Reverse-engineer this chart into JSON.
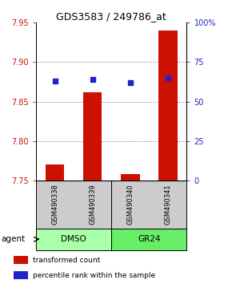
{
  "title": "GDS3583 / 249786_at",
  "samples": [
    "GSM490338",
    "GSM490339",
    "GSM490340",
    "GSM490341"
  ],
  "bar_values": [
    7.77,
    7.862,
    7.758,
    7.94
  ],
  "bar_base": 7.75,
  "percentile_values": [
    63,
    64,
    62,
    65
  ],
  "ylim_left": [
    7.75,
    7.95
  ],
  "ylim_right": [
    0,
    100
  ],
  "yticks_left": [
    7.75,
    7.8,
    7.85,
    7.9,
    7.95
  ],
  "yticks_right": [
    0,
    25,
    50,
    75,
    100
  ],
  "ytick_labels_right": [
    "0",
    "25",
    "50",
    "75",
    "100%"
  ],
  "bar_color": "#cc1100",
  "percentile_color": "#2222cc",
  "groups": [
    {
      "label": "DMSO",
      "samples": [
        0,
        1
      ],
      "color": "#aaffaa"
    },
    {
      "label": "GR24",
      "samples": [
        2,
        3
      ],
      "color": "#66ee66"
    }
  ],
  "agent_label": "agent",
  "legend_items": [
    {
      "color": "#cc1100",
      "label": "transformed count"
    },
    {
      "color": "#2222cc",
      "label": "percentile rank within the sample"
    }
  ],
  "grid_color": "#555555",
  "sample_box_color": "#cccccc",
  "title_fontsize": 9,
  "tick_fontsize": 7,
  "sample_fontsize": 6,
  "legend_fontsize": 6.5,
  "agent_fontsize": 7.5
}
